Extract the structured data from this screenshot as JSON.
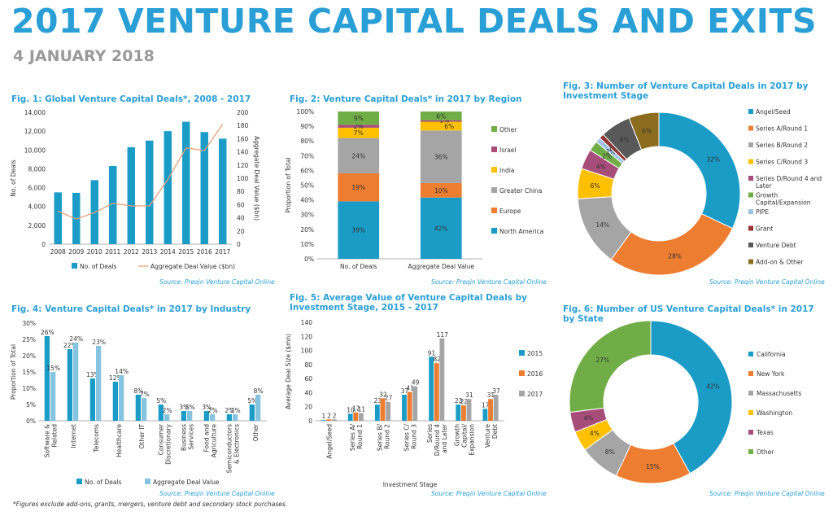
{
  "header": {
    "title": "2017 VENTURE CAPITAL DEALS AND EXITS",
    "date": "4 JANUARY 2018"
  },
  "footnote": "*Figures exclude add-ons, grants, mergers, venture debt and secondary stock purchases.",
  "source_text": "Source: Preqin Venture Capital Online",
  "colors": {
    "blue": "#1a9cc7",
    "orange": "#ed7d31",
    "gray": "#a5a5a5",
    "yellow": "#ffc000",
    "purple": "#a64d79",
    "green": "#70ad47",
    "lightblue": "#9dc3e6",
    "darkred": "#943634",
    "darkgray": "#595959",
    "brown": "#8c6d1f",
    "lightbar": "#85c4e0"
  },
  "chart_data": [
    {
      "id": "fig1",
      "type": "bar",
      "title": "Fig. 1: Global Venture Capital Deals*, 2008 - 2017",
      "categories": [
        "2008",
        "2009",
        "2010",
        "2011",
        "2012",
        "2013",
        "2014",
        "2015",
        "2016",
        "2017"
      ],
      "series": [
        {
          "name": "No. of Deals",
          "type": "bar",
          "axis": "left",
          "values": [
            5500,
            5450,
            6800,
            8300,
            10300,
            11000,
            12000,
            13000,
            11900,
            11200
          ]
        },
        {
          "name": "Aggregate Deal Value ($bn)",
          "type": "line",
          "axis": "right",
          "values": [
            50,
            38,
            48,
            62,
            58,
            58,
            98,
            146,
            142,
            182
          ]
        }
      ],
      "ylabel": "No. of Deals",
      "y2label": "Aggregate Deal Value ($bn)",
      "ylim": [
        0,
        14000
      ],
      "yticks": [
        "0",
        "2,000",
        "4,000",
        "6,000",
        "8,000",
        "10,000",
        "12,000",
        "14,000"
      ],
      "y2lim": [
        0,
        200
      ],
      "y2ticks": [
        "0",
        "20",
        "40",
        "60",
        "80",
        "100",
        "120",
        "140",
        "160",
        "180",
        "200"
      ]
    },
    {
      "id": "fig2",
      "type": "bar",
      "stacked": true,
      "title": "Fig. 2: Venture Capital Deals* in 2017 by Region",
      "categories": [
        "No. of Deals",
        "Aggregate Deal Value"
      ],
      "series": [
        {
          "name": "North America",
          "values": [
            39,
            42
          ],
          "labels": [
            "39%",
            "42%"
          ]
        },
        {
          "name": "Europe",
          "values": [
            19,
            10
          ],
          "labels": [
            "19%",
            "10%"
          ]
        },
        {
          "name": "Greater China",
          "values": [
            24,
            36
          ],
          "labels": [
            "24%",
            "36%"
          ]
        },
        {
          "name": "India",
          "values": [
            7,
            6
          ],
          "labels": [
            "7%",
            "6%"
          ]
        },
        {
          "name": "Israel",
          "values": [
            2,
            1
          ],
          "labels": [
            "2%",
            "1%"
          ]
        },
        {
          "name": "Other",
          "values": [
            9,
            6
          ],
          "labels": [
            "9%",
            "6%"
          ]
        }
      ],
      "ylabel": "Proportion of Total",
      "ylim": [
        0,
        100
      ],
      "yticks": [
        "0%",
        "10%",
        "20%",
        "30%",
        "40%",
        "50%",
        "60%",
        "70%",
        "80%",
        "90%",
        "100%"
      ]
    },
    {
      "id": "fig3",
      "type": "pie",
      "donut": true,
      "title": "Fig. 3: Number of Venture Capital Deals in 2017 by Investment Stage",
      "slices": [
        {
          "name": "Angel/Seed",
          "value": 32,
          "label": "32%"
        },
        {
          "name": "Series A/Round 1",
          "value": 28,
          "label": "28%"
        },
        {
          "name": "Series B/Round 2",
          "value": 14,
          "label": "14%"
        },
        {
          "name": "Series C/Round 3",
          "value": 6,
          "label": "6%"
        },
        {
          "name": "Series D/Round 4 and Later",
          "value": 4,
          "label": "4%"
        },
        {
          "name": "Growth Capital/Expansion",
          "value": 2,
          "label": "2%"
        },
        {
          "name": "PIPE",
          "value": 1,
          "label": "1%"
        },
        {
          "name": "Grant",
          "value": 1,
          "label": "1%"
        },
        {
          "name": "Venture Debt",
          "value": 6,
          "label": "6%"
        },
        {
          "name": "Add-on & Other",
          "value": 6,
          "label": "6%"
        }
      ]
    },
    {
      "id": "fig4",
      "type": "bar",
      "title": "Fig. 4: Venture Capital Deals* in 2017 by Industry",
      "categories": [
        "Software & Related",
        "Internet",
        "Telecoms",
        "Healthcare",
        "Other IT",
        "Consumer Discretionary",
        "Business Services",
        "Food and Agriculture",
        "Semiconductors & Electronics",
        "Other"
      ],
      "series": [
        {
          "name": "No. of Deals",
          "values": [
            26,
            22,
            13,
            12,
            8,
            5,
            3,
            3,
            2,
            5
          ],
          "labels": [
            "26%",
            "22%",
            "13%",
            "12%",
            "8%",
            "5%",
            "3%",
            "3%",
            "2%",
            "5%"
          ]
        },
        {
          "name": "Aggregate Deal Value",
          "values": [
            15,
            24,
            23,
            14,
            7,
            2,
            3,
            2,
            2,
            8
          ],
          "labels": [
            "15%",
            "24%",
            "23%",
            "14%",
            "7%",
            "2%",
            "3%",
            "2%",
            "2%",
            "8%"
          ]
        }
      ],
      "ylabel": "Proportion of Total",
      "ylim": [
        0,
        30
      ],
      "yticks": [
        "0%",
        "5%",
        "10%",
        "15%",
        "20%",
        "25%",
        "30%"
      ]
    },
    {
      "id": "fig5",
      "type": "bar",
      "title": "Fig. 5: Average Value of Venture Capital Deals by Investment Stage, 2015 - 2017",
      "categories": [
        "Angel/Seed",
        "Series A/ Round 1",
        "Series B/ Round 2",
        "Series C/ Round 3",
        "Series D/Round 4 and Later",
        "Growth Capital/ Expansion",
        "Venture Debt"
      ],
      "series": [
        {
          "name": "2015",
          "values": [
            1,
            10,
            23,
            37,
            91,
            23,
            17
          ]
        },
        {
          "name": "2016",
          "values": [
            2,
            12,
            32,
            41,
            82,
            22,
            31
          ]
        },
        {
          "name": "2017",
          "values": [
            2,
            11,
            27,
            49,
            117,
            31,
            37
          ]
        }
      ],
      "xlabel": "Investment Stage",
      "ylabel": "Average Deal Size ($mn)",
      "ylim": [
        0,
        140
      ],
      "yticks": [
        "0",
        "20",
        "40",
        "60",
        "80",
        "100",
        "120",
        "140"
      ]
    },
    {
      "id": "fig6",
      "type": "pie",
      "donut": true,
      "title": "Fig. 6: Number of US Venture Capital Deals* in 2017 by State",
      "slices": [
        {
          "name": "California",
          "value": 42,
          "label": "42%"
        },
        {
          "name": "New York",
          "value": 15,
          "label": "15%"
        },
        {
          "name": "Massachusetts",
          "value": 8,
          "label": "8%"
        },
        {
          "name": "Washington",
          "value": 4,
          "label": "4%"
        },
        {
          "name": "Texas",
          "value": 4,
          "label": "4%"
        },
        {
          "name": "Other",
          "value": 27,
          "label": "27%"
        }
      ]
    }
  ]
}
